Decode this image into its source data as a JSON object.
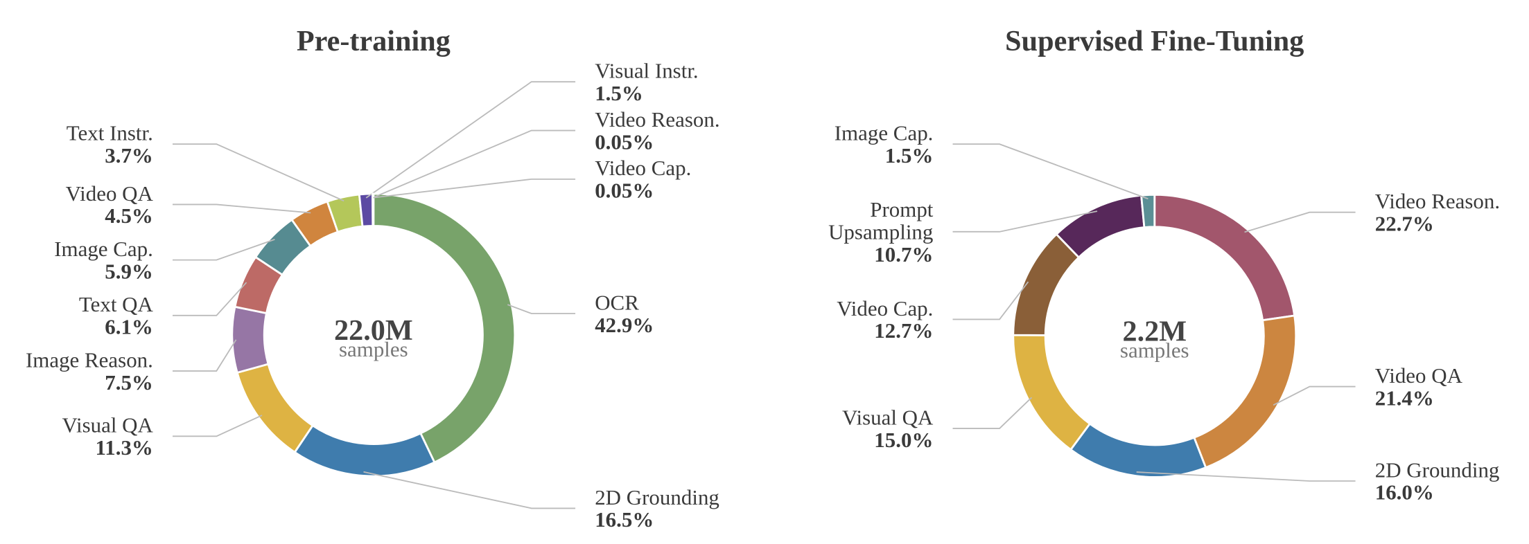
{
  "chart_data": [
    {
      "type": "pie",
      "title": "Pre-training",
      "center_label": "22.0M",
      "center_sublabel": "samples",
      "categories": [
        "OCR",
        "2D Grounding",
        "Visual QA",
        "Image Reason.",
        "Text QA",
        "Image Cap.",
        "Video QA",
        "Text Instr.",
        "Visual Instr.",
        "Video Reason.",
        "Video Cap."
      ],
      "values": [
        42.9,
        16.5,
        11.3,
        7.5,
        6.1,
        5.9,
        4.5,
        3.7,
        1.5,
        0.05,
        0.05
      ],
      "value_labels": [
        "42.9%",
        "16.5%",
        "11.3%",
        "7.5%",
        "6.1%",
        "5.9%",
        "4.5%",
        "3.7%",
        "1.5%",
        "0.05%",
        "0.05%"
      ],
      "colors": [
        "#78a36a",
        "#3f7cad",
        "#deb343",
        "#9676a5",
        "#bd6a66",
        "#568b91",
        "#d0853e",
        "#b4c75a",
        "#5c4aa3",
        "#7a5ea0",
        "#4a6fb0"
      ]
    },
    {
      "type": "pie",
      "title": "Supervised Fine-Tuning",
      "center_label": "2.2M",
      "center_sublabel": "samples",
      "categories": [
        "Video Reason.",
        "Video QA",
        "2D Grounding",
        "Visual QA",
        "Video Cap.",
        "Prompt\nUpsampling",
        "Image Cap."
      ],
      "values": [
        22.7,
        21.4,
        16.0,
        15.0,
        12.7,
        10.7,
        1.5
      ],
      "value_labels": [
        "22.7%",
        "21.4%",
        "16.0%",
        "15.0%",
        "12.7%",
        "10.7%",
        "1.5%"
      ],
      "colors": [
        "#a2566c",
        "#cc8640",
        "#3f7cad",
        "#deb343",
        "#8a5f38",
        "#57285a",
        "#5b8f95"
      ]
    }
  ]
}
